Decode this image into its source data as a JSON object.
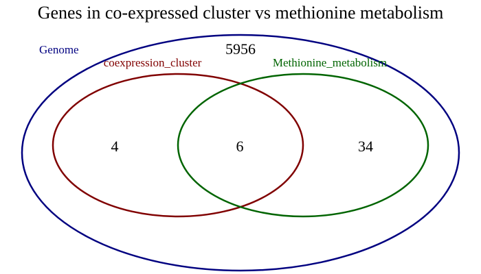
{
  "title": "Genes in co-expressed cluster vs methionine metabolism",
  "sets": {
    "genome": {
      "label": "Genome",
      "color": "#000080"
    },
    "cluster": {
      "label": "coexpression_cluster",
      "color": "#800000"
    },
    "methionine": {
      "label": "Methionine_metabolism",
      "color": "#006400"
    }
  },
  "counts": {
    "outside": "5956",
    "cluster_only": "4",
    "both": "6",
    "methionine_only": "34"
  }
}
